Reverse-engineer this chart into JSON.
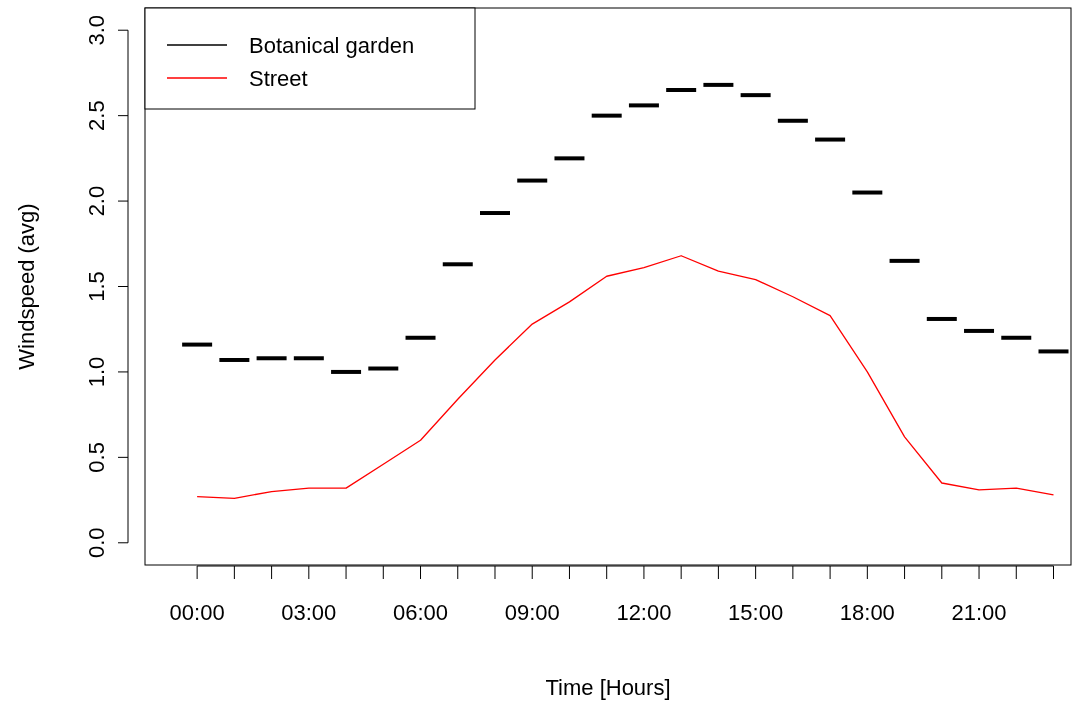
{
  "chart_data": {
    "type": "line",
    "xlabel": "Time [Hours]",
    "ylabel": "Windspeed (avg)",
    "categories": [
      "00:00",
      null,
      null,
      "03:00",
      null,
      null,
      "06:00",
      null,
      null,
      "09:00",
      null,
      null,
      "12:00",
      null,
      null,
      "15:00",
      null,
      null,
      "18:00",
      null,
      null,
      "21:00",
      null,
      null
    ],
    "ylim": [
      -0.13,
      3.13
    ],
    "yticks": [
      {
        "value": 0,
        "label": "0.0"
      },
      {
        "value": 0.5,
        "label": "0.5"
      },
      {
        "value": 1,
        "label": "1.0"
      },
      {
        "value": 1.5,
        "label": "1.5"
      },
      {
        "value": 2,
        "label": "2.0"
      },
      {
        "value": 2.5,
        "label": "2.5"
      },
      {
        "value": 3,
        "label": "3.0"
      }
    ],
    "legend": "top left",
    "grid": false,
    "series": [
      {
        "name": "Botanical garden",
        "type": "box",
        "color": "#000000",
        "boxes": [
          {
            "low": 1.16,
            "q1": 1.16,
            "median": 1.16,
            "q3": 1.16,
            "high": 1.16
          },
          {
            "low": 1.07,
            "q1": 1.07,
            "median": 1.07,
            "q3": 1.07,
            "high": 1.07
          },
          {
            "low": 1.08,
            "q1": 1.08,
            "median": 1.08,
            "q3": 1.08,
            "high": 1.08
          },
          {
            "low": 1.08,
            "q1": 1.08,
            "median": 1.08,
            "q3": 1.08,
            "high": 1.08
          },
          {
            "low": 1.0,
            "q1": 1.0,
            "median": 1.0,
            "q3": 1.0,
            "high": 1.0
          },
          {
            "low": 1.02,
            "q1": 1.02,
            "median": 1.02,
            "q3": 1.02,
            "high": 1.02
          },
          {
            "low": 1.2,
            "q1": 1.2,
            "median": 1.2,
            "q3": 1.2,
            "high": 1.2
          },
          {
            "low": 1.63,
            "q1": 1.63,
            "median": 1.63,
            "q3": 1.63,
            "high": 1.63
          },
          {
            "low": 1.93,
            "q1": 1.93,
            "median": 1.93,
            "q3": 1.93,
            "high": 1.93
          },
          {
            "low": 2.12,
            "q1": 2.12,
            "median": 2.12,
            "q3": 2.12,
            "high": 2.12
          },
          {
            "low": 2.25,
            "q1": 2.25,
            "median": 2.25,
            "q3": 2.25,
            "high": 2.25
          },
          {
            "low": 2.5,
            "q1": 2.5,
            "median": 2.5,
            "q3": 2.5,
            "high": 2.5
          },
          {
            "low": 2.56,
            "q1": 2.56,
            "median": 2.56,
            "q3": 2.56,
            "high": 2.56
          },
          {
            "low": 2.65,
            "q1": 2.65,
            "median": 2.65,
            "q3": 2.65,
            "high": 2.65
          },
          {
            "low": 2.68,
            "q1": 2.68,
            "median": 2.68,
            "q3": 2.68,
            "high": 2.68
          },
          {
            "low": 2.62,
            "q1": 2.62,
            "median": 2.62,
            "q3": 2.62,
            "high": 2.62
          },
          {
            "low": 2.47,
            "q1": 2.47,
            "median": 2.47,
            "q3": 2.47,
            "high": 2.47
          },
          {
            "low": 2.36,
            "q1": 2.36,
            "median": 2.36,
            "q3": 2.36,
            "high": 2.36
          },
          {
            "low": 2.05,
            "q1": 2.05,
            "median": 2.05,
            "q3": 2.05,
            "high": 2.05
          },
          {
            "low": 1.65,
            "q1": 1.65,
            "median": 1.65,
            "q3": 1.65,
            "high": 1.65
          },
          {
            "low": 1.31,
            "q1": 1.31,
            "median": 1.31,
            "q3": 1.31,
            "high": 1.31
          },
          {
            "low": 1.24,
            "q1": 1.24,
            "median": 1.24,
            "q3": 1.24,
            "high": 1.24
          },
          {
            "low": 1.2,
            "q1": 1.2,
            "median": 1.2,
            "q3": 1.2,
            "high": 1.2
          },
          {
            "low": 1.12,
            "q1": 1.12,
            "median": 1.12,
            "q3": 1.12,
            "high": 1.12
          }
        ]
      },
      {
        "name": "Street",
        "color": "#ff0000",
        "values": [
          0.27,
          0.26,
          0.3,
          0.32,
          0.32,
          0.46,
          0.6,
          0.84,
          1.07,
          1.28,
          1.41,
          1.56,
          1.61,
          1.68,
          1.59,
          1.54,
          1.44,
          1.33,
          1.0,
          0.62,
          0.35,
          0.31,
          0.32,
          0.28
        ]
      }
    ]
  }
}
